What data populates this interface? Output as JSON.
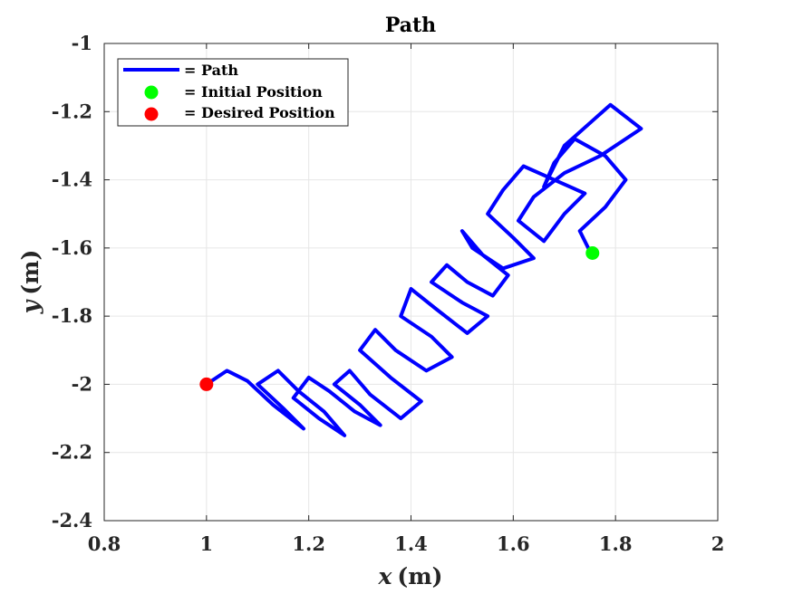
{
  "chart_data": {
    "type": "line",
    "title": "Path",
    "xlabel_var": "x",
    "xlabel_unit": "(m)",
    "ylabel_var": "y",
    "ylabel_unit": "(m)",
    "xlim": [
      0.8,
      2.0
    ],
    "ylim": [
      -2.4,
      -1.0
    ],
    "xticks": [
      0.8,
      1.0,
      1.2,
      1.4,
      1.6,
      1.8,
      2.0
    ],
    "xtick_labels": [
      "0.8",
      "1",
      "1.2",
      "1.4",
      "1.6",
      "1.8",
      "2"
    ],
    "yticks": [
      -2.4,
      -2.2,
      -2.0,
      -1.8,
      -1.6,
      -1.4,
      -1.2,
      -1.0
    ],
    "ytick_labels": [
      "-2.4",
      "-2.2",
      "-2",
      "-1.8",
      "-1.6",
      "-1.4",
      "-1.2",
      "-1"
    ],
    "grid": true,
    "legend_placement": "top-left",
    "legend": [
      {
        "label": "= Path",
        "marker": "line",
        "color": "#0000ff"
      },
      {
        "label": "= Initial Position",
        "marker": "circle",
        "color": "#00ff00"
      },
      {
        "label": "= Desired Position",
        "marker": "circle",
        "color": "#ff0000"
      }
    ],
    "series": [
      {
        "name": "Path",
        "color": "#0000ff",
        "x": [
          1.75,
          1.73,
          1.78,
          1.82,
          1.78,
          1.72,
          1.68,
          1.66,
          1.7,
          1.76,
          1.79,
          1.85,
          1.77,
          1.7,
          1.64,
          1.61,
          1.66,
          1.7,
          1.74,
          1.68,
          1.62,
          1.58,
          1.55,
          1.6,
          1.64,
          1.58,
          1.52,
          1.5,
          1.54,
          1.59,
          1.56,
          1.51,
          1.47,
          1.44,
          1.5,
          1.55,
          1.51,
          1.45,
          1.4,
          1.38,
          1.44,
          1.48,
          1.43,
          1.37,
          1.33,
          1.3,
          1.36,
          1.42,
          1.38,
          1.32,
          1.28,
          1.25,
          1.3,
          1.34,
          1.29,
          1.24,
          1.2,
          1.17,
          1.22,
          1.27,
          1.23,
          1.18,
          1.14,
          1.1,
          1.15,
          1.19,
          1.13,
          1.08,
          1.04,
          1.0
        ],
        "y": [
          -1.61,
          -1.55,
          -1.48,
          -1.4,
          -1.33,
          -1.28,
          -1.35,
          -1.42,
          -1.3,
          -1.22,
          -1.18,
          -1.25,
          -1.33,
          -1.38,
          -1.45,
          -1.52,
          -1.58,
          -1.5,
          -1.44,
          -1.4,
          -1.36,
          -1.43,
          -1.5,
          -1.57,
          -1.63,
          -1.66,
          -1.6,
          -1.55,
          -1.62,
          -1.68,
          -1.74,
          -1.7,
          -1.65,
          -1.7,
          -1.76,
          -1.8,
          -1.85,
          -1.78,
          -1.72,
          -1.8,
          -1.86,
          -1.92,
          -1.96,
          -1.9,
          -1.84,
          -1.9,
          -1.98,
          -2.05,
          -2.1,
          -2.03,
          -1.96,
          -2.0,
          -2.06,
          -2.12,
          -2.08,
          -2.02,
          -1.98,
          -2.04,
          -2.1,
          -2.15,
          -2.08,
          -2.02,
          -1.96,
          -2.0,
          -2.07,
          -2.13,
          -2.06,
          -1.99,
          -1.96,
          -2.0
        ]
      }
    ],
    "points": [
      {
        "name": "Initial Position",
        "x": 1.755,
        "y": -1.615,
        "color": "#00ff00"
      },
      {
        "name": "Desired Position",
        "x": 1.0,
        "y": -2.0,
        "color": "#ff0000"
      }
    ]
  }
}
